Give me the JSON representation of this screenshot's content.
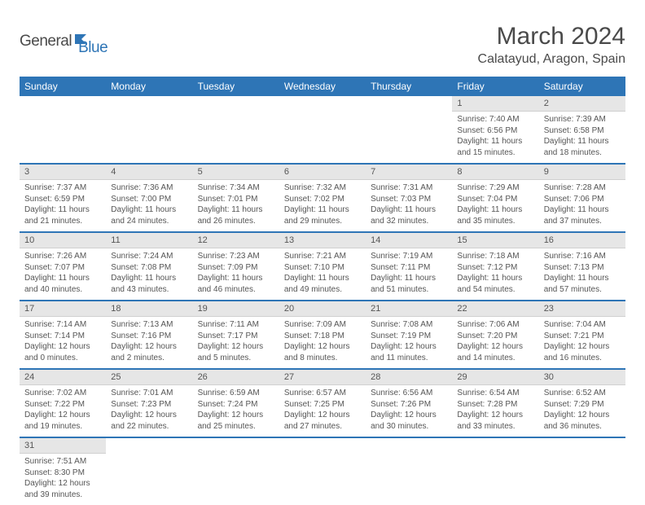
{
  "logo": {
    "part1": "General",
    "part2": "Blue"
  },
  "title": "March 2024",
  "location": "Calatayud, Aragon, Spain",
  "colors": {
    "accent": "#2e75b6",
    "header_bg": "#e6e6e6",
    "text": "#555555"
  },
  "weekdays": [
    "Sunday",
    "Monday",
    "Tuesday",
    "Wednesday",
    "Thursday",
    "Friday",
    "Saturday"
  ],
  "weeks": [
    [
      null,
      null,
      null,
      null,
      null,
      {
        "n": "1",
        "sr": "7:40 AM",
        "ss": "6:56 PM",
        "dl": "11 hours and 15 minutes."
      },
      {
        "n": "2",
        "sr": "7:39 AM",
        "ss": "6:58 PM",
        "dl": "11 hours and 18 minutes."
      }
    ],
    [
      {
        "n": "3",
        "sr": "7:37 AM",
        "ss": "6:59 PM",
        "dl": "11 hours and 21 minutes."
      },
      {
        "n": "4",
        "sr": "7:36 AM",
        "ss": "7:00 PM",
        "dl": "11 hours and 24 minutes."
      },
      {
        "n": "5",
        "sr": "7:34 AM",
        "ss": "7:01 PM",
        "dl": "11 hours and 26 minutes."
      },
      {
        "n": "6",
        "sr": "7:32 AM",
        "ss": "7:02 PM",
        "dl": "11 hours and 29 minutes."
      },
      {
        "n": "7",
        "sr": "7:31 AM",
        "ss": "7:03 PM",
        "dl": "11 hours and 32 minutes."
      },
      {
        "n": "8",
        "sr": "7:29 AM",
        "ss": "7:04 PM",
        "dl": "11 hours and 35 minutes."
      },
      {
        "n": "9",
        "sr": "7:28 AM",
        "ss": "7:06 PM",
        "dl": "11 hours and 37 minutes."
      }
    ],
    [
      {
        "n": "10",
        "sr": "7:26 AM",
        "ss": "7:07 PM",
        "dl": "11 hours and 40 minutes."
      },
      {
        "n": "11",
        "sr": "7:24 AM",
        "ss": "7:08 PM",
        "dl": "11 hours and 43 minutes."
      },
      {
        "n": "12",
        "sr": "7:23 AM",
        "ss": "7:09 PM",
        "dl": "11 hours and 46 minutes."
      },
      {
        "n": "13",
        "sr": "7:21 AM",
        "ss": "7:10 PM",
        "dl": "11 hours and 49 minutes."
      },
      {
        "n": "14",
        "sr": "7:19 AM",
        "ss": "7:11 PM",
        "dl": "11 hours and 51 minutes."
      },
      {
        "n": "15",
        "sr": "7:18 AM",
        "ss": "7:12 PM",
        "dl": "11 hours and 54 minutes."
      },
      {
        "n": "16",
        "sr": "7:16 AM",
        "ss": "7:13 PM",
        "dl": "11 hours and 57 minutes."
      }
    ],
    [
      {
        "n": "17",
        "sr": "7:14 AM",
        "ss": "7:14 PM",
        "dl": "12 hours and 0 minutes."
      },
      {
        "n": "18",
        "sr": "7:13 AM",
        "ss": "7:16 PM",
        "dl": "12 hours and 2 minutes."
      },
      {
        "n": "19",
        "sr": "7:11 AM",
        "ss": "7:17 PM",
        "dl": "12 hours and 5 minutes."
      },
      {
        "n": "20",
        "sr": "7:09 AM",
        "ss": "7:18 PM",
        "dl": "12 hours and 8 minutes."
      },
      {
        "n": "21",
        "sr": "7:08 AM",
        "ss": "7:19 PM",
        "dl": "12 hours and 11 minutes."
      },
      {
        "n": "22",
        "sr": "7:06 AM",
        "ss": "7:20 PM",
        "dl": "12 hours and 14 minutes."
      },
      {
        "n": "23",
        "sr": "7:04 AM",
        "ss": "7:21 PM",
        "dl": "12 hours and 16 minutes."
      }
    ],
    [
      {
        "n": "24",
        "sr": "7:02 AM",
        "ss": "7:22 PM",
        "dl": "12 hours and 19 minutes."
      },
      {
        "n": "25",
        "sr": "7:01 AM",
        "ss": "7:23 PM",
        "dl": "12 hours and 22 minutes."
      },
      {
        "n": "26",
        "sr": "6:59 AM",
        "ss": "7:24 PM",
        "dl": "12 hours and 25 minutes."
      },
      {
        "n": "27",
        "sr": "6:57 AM",
        "ss": "7:25 PM",
        "dl": "12 hours and 27 minutes."
      },
      {
        "n": "28",
        "sr": "6:56 AM",
        "ss": "7:26 PM",
        "dl": "12 hours and 30 minutes."
      },
      {
        "n": "29",
        "sr": "6:54 AM",
        "ss": "7:28 PM",
        "dl": "12 hours and 33 minutes."
      },
      {
        "n": "30",
        "sr": "6:52 AM",
        "ss": "7:29 PM",
        "dl": "12 hours and 36 minutes."
      }
    ],
    [
      {
        "n": "31",
        "sr": "7:51 AM",
        "ss": "8:30 PM",
        "dl": "12 hours and 39 minutes."
      },
      null,
      null,
      null,
      null,
      null,
      null
    ]
  ],
  "labels": {
    "sunrise": "Sunrise:",
    "sunset": "Sunset:",
    "daylight": "Daylight:"
  }
}
